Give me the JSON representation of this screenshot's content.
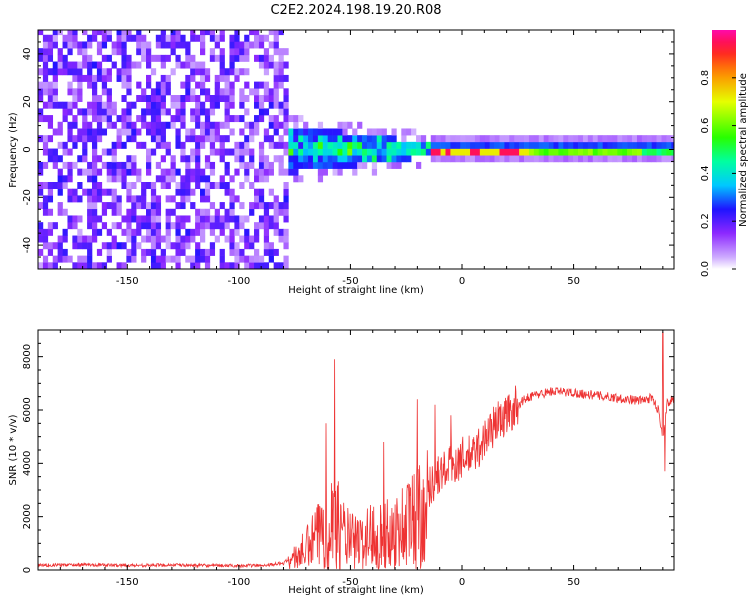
{
  "figure_title": "C2E2.2024.198.19.20.R08",
  "chart_data": [
    {
      "type": "heatmap",
      "title": "C2E2.2024.198.19.20.R08",
      "xlabel": "Height of straight line (km)",
      "ylabel": "Frequency (Hz)",
      "xlim": [
        -190,
        95
      ],
      "ylim": [
        -50,
        50
      ],
      "x_ticks": [
        -150,
        -100,
        -50,
        0,
        50
      ],
      "y_ticks": [
        -40,
        -20,
        0,
        20,
        40
      ],
      "description_regions": [
        {
          "x_range": [
            -190,
            -78
          ],
          "freq_range": [
            -50,
            50
          ],
          "amplitude_range": [
            0.05,
            0.45
          ],
          "pattern": "noise"
        },
        {
          "x_range": [
            -78,
            -15
          ],
          "freq_range": [
            -10,
            10
          ],
          "amplitude_range": [
            0.2,
            0.65
          ],
          "pattern": "converging"
        },
        {
          "x_range": [
            -15,
            93
          ],
          "freq_range": [
            -2,
            2
          ],
          "amplitude_range": [
            0.3,
            1.0
          ],
          "pattern": "narrow_line"
        }
      ],
      "colorbar": {
        "label": "Normalized spectral amplitude",
        "range": [
          0.0,
          1.0
        ],
        "ticks": [
          0.0,
          0.2,
          0.4,
          0.6,
          0.8
        ],
        "tick_labels": [
          "0.0",
          "0.2",
          "0.4",
          "0.6",
          "0.8"
        ],
        "colormap": "gist_rainbow_r_white"
      }
    },
    {
      "type": "line",
      "xlabel": "Height of straight line (km)",
      "ylabel": "SNR (10 * v/v)",
      "xlim": [
        -190,
        95
      ],
      "ylim": [
        0,
        9000
      ],
      "x_ticks": [
        -150,
        -100,
        -50,
        0,
        50
      ],
      "y_ticks": [
        0,
        2000,
        4000,
        6000,
        8000
      ],
      "line_color": "#ee3333",
      "series": [
        {
          "name": "SNR",
          "x": [
            -190,
            -170,
            -150,
            -130,
            -110,
            -90,
            -80,
            -75,
            -70,
            -65,
            -60,
            -57,
            -55,
            -50,
            -45,
            -40,
            -35,
            -30,
            -25,
            -20,
            -15,
            -10,
            -5,
            0,
            5,
            10,
            15,
            20,
            25,
            30,
            35,
            40,
            50,
            60,
            70,
            80,
            85,
            88,
            90,
            92,
            95
          ],
          "y": [
            180,
            200,
            170,
            190,
            160,
            170,
            250,
            600,
            1000,
            1600,
            2200,
            2600,
            2000,
            1400,
            1300,
            1800,
            1600,
            1900,
            2200,
            2800,
            3100,
            3600,
            3900,
            4200,
            4300,
            4900,
            5500,
            5800,
            6200,
            6500,
            6600,
            6700,
            6650,
            6550,
            6450,
            6350,
            6450,
            6000,
            5000,
            6300,
            6400
          ],
          "spikes": [
            {
              "x": -57,
              "y": 7900
            },
            {
              "x": -61,
              "y": 5500
            },
            {
              "x": -35,
              "y": 4800
            },
            {
              "x": -20,
              "y": 6400
            },
            {
              "x": -12,
              "y": 6200
            },
            {
              "x": -5,
              "y": 5800
            },
            {
              "x": 90,
              "y": 8900
            },
            {
              "x": 91,
              "y": 3700
            }
          ]
        }
      ]
    }
  ]
}
